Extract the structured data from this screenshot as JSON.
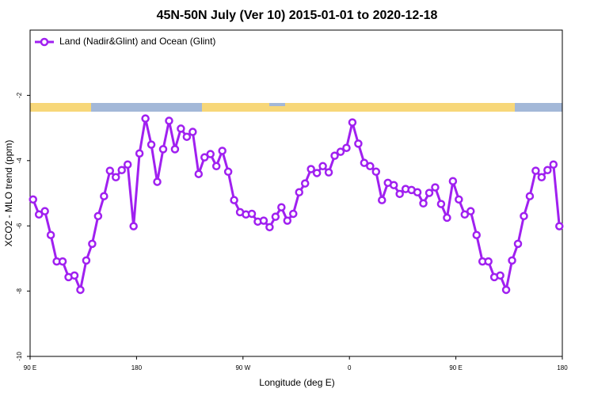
{
  "chart_data": {
    "type": "line",
    "title": "45N-50N July (Ver 10)   2015-01-01 to 2020-12-18",
    "x_label": "Longitude (deg E)",
    "y_label": "XCO2 - MLO trend (ppm)",
    "legend": "top-left",
    "xlim": [
      90,
      540
    ],
    "xticks": [
      {
        "value": 90,
        "label": "90 E"
      },
      180,
      {
        "value": 270,
        "label": "90 W"
      },
      {
        "value": 360,
        "label": "0"
      },
      {
        "value": 450,
        "label": "90 E"
      },
      {
        "value": 540,
        "label": "180"
      }
    ],
    "ylim": [
      -10,
      0
    ],
    "yticks": [
      -10,
      -8,
      -6,
      -4,
      -2
    ],
    "x": [
      92.5,
      97.5,
      102.5,
      107.5,
      112.5,
      117.5,
      122.5,
      127.5,
      132.5,
      137.5,
      142.5,
      147.5,
      152.5,
      157.5,
      162.5,
      167.5,
      172.5,
      177.5,
      182.5,
      187.5,
      192.5,
      197.5,
      202.5,
      207.5,
      212.5,
      217.5,
      222.5,
      227.5,
      232.5,
      237.5,
      242.5,
      247.5,
      252.5,
      257.5,
      262.5,
      267.5,
      272.5,
      277.5,
      282.5,
      287.5,
      292.5,
      297.5,
      302.5,
      307.5,
      312.5,
      317.5,
      322.5,
      327.5,
      332.5,
      337.5,
      342.5,
      347.5,
      352.5,
      357.5,
      362.5,
      367.5,
      372.5,
      377.5,
      382.5,
      387.5,
      392.5,
      397.5,
      402.5,
      407.5,
      412.5,
      417.5,
      422.5,
      427.5,
      432.5,
      437.5,
      442.5,
      447.5,
      452.5,
      457.5,
      462.5,
      467.5,
      472.5,
      477.5,
      482.5,
      487.5,
      492.5,
      497.5,
      502.5,
      507.5,
      512.5,
      517.5,
      522.5,
      527.5,
      532.5,
      537.5
    ],
    "series": [
      {
        "name": "Land (Nadir&Glint) and Ocean (Glint)",
        "color": "#a020f0",
        "values": [
          -5.19,
          -5.65,
          -5.55,
          -6.28,
          -7.09,
          -7.09,
          -7.57,
          -7.52,
          -7.96,
          -7.06,
          -6.55,
          -5.7,
          -5.09,
          -4.31,
          -4.51,
          -4.29,
          -4.12,
          -6.01,
          -3.78,
          -2.71,
          -3.51,
          -4.65,
          -3.65,
          -2.78,
          -3.65,
          -3.02,
          -3.27,
          -3.12,
          -4.41,
          -3.9,
          -3.8,
          -4.17,
          -3.7,
          -4.34,
          -5.21,
          -5.58,
          -5.65,
          -5.63,
          -5.87,
          -5.84,
          -6.04,
          -5.72,
          -5.43,
          -5.84,
          -5.63,
          -4.97,
          -4.7,
          -4.26,
          -4.38,
          -4.17,
          -4.36,
          -3.85,
          -3.73,
          -3.61,
          -2.83,
          -3.48,
          -4.07,
          -4.17,
          -4.34,
          -5.21,
          -4.68,
          -4.75,
          -5.02,
          -4.87,
          -4.9,
          -4.97,
          -5.31,
          -4.99,
          -4.82,
          -5.33,
          -5.75,
          -4.63,
          -5.19,
          -5.65,
          -5.55,
          -6.28,
          -7.09,
          -7.09,
          -7.57,
          -7.52,
          -7.96,
          -7.06,
          -6.55,
          -5.7,
          -5.09,
          -4.31,
          -4.51,
          -4.29,
          -4.12,
          -6.01
        ]
      }
    ]
  }
}
